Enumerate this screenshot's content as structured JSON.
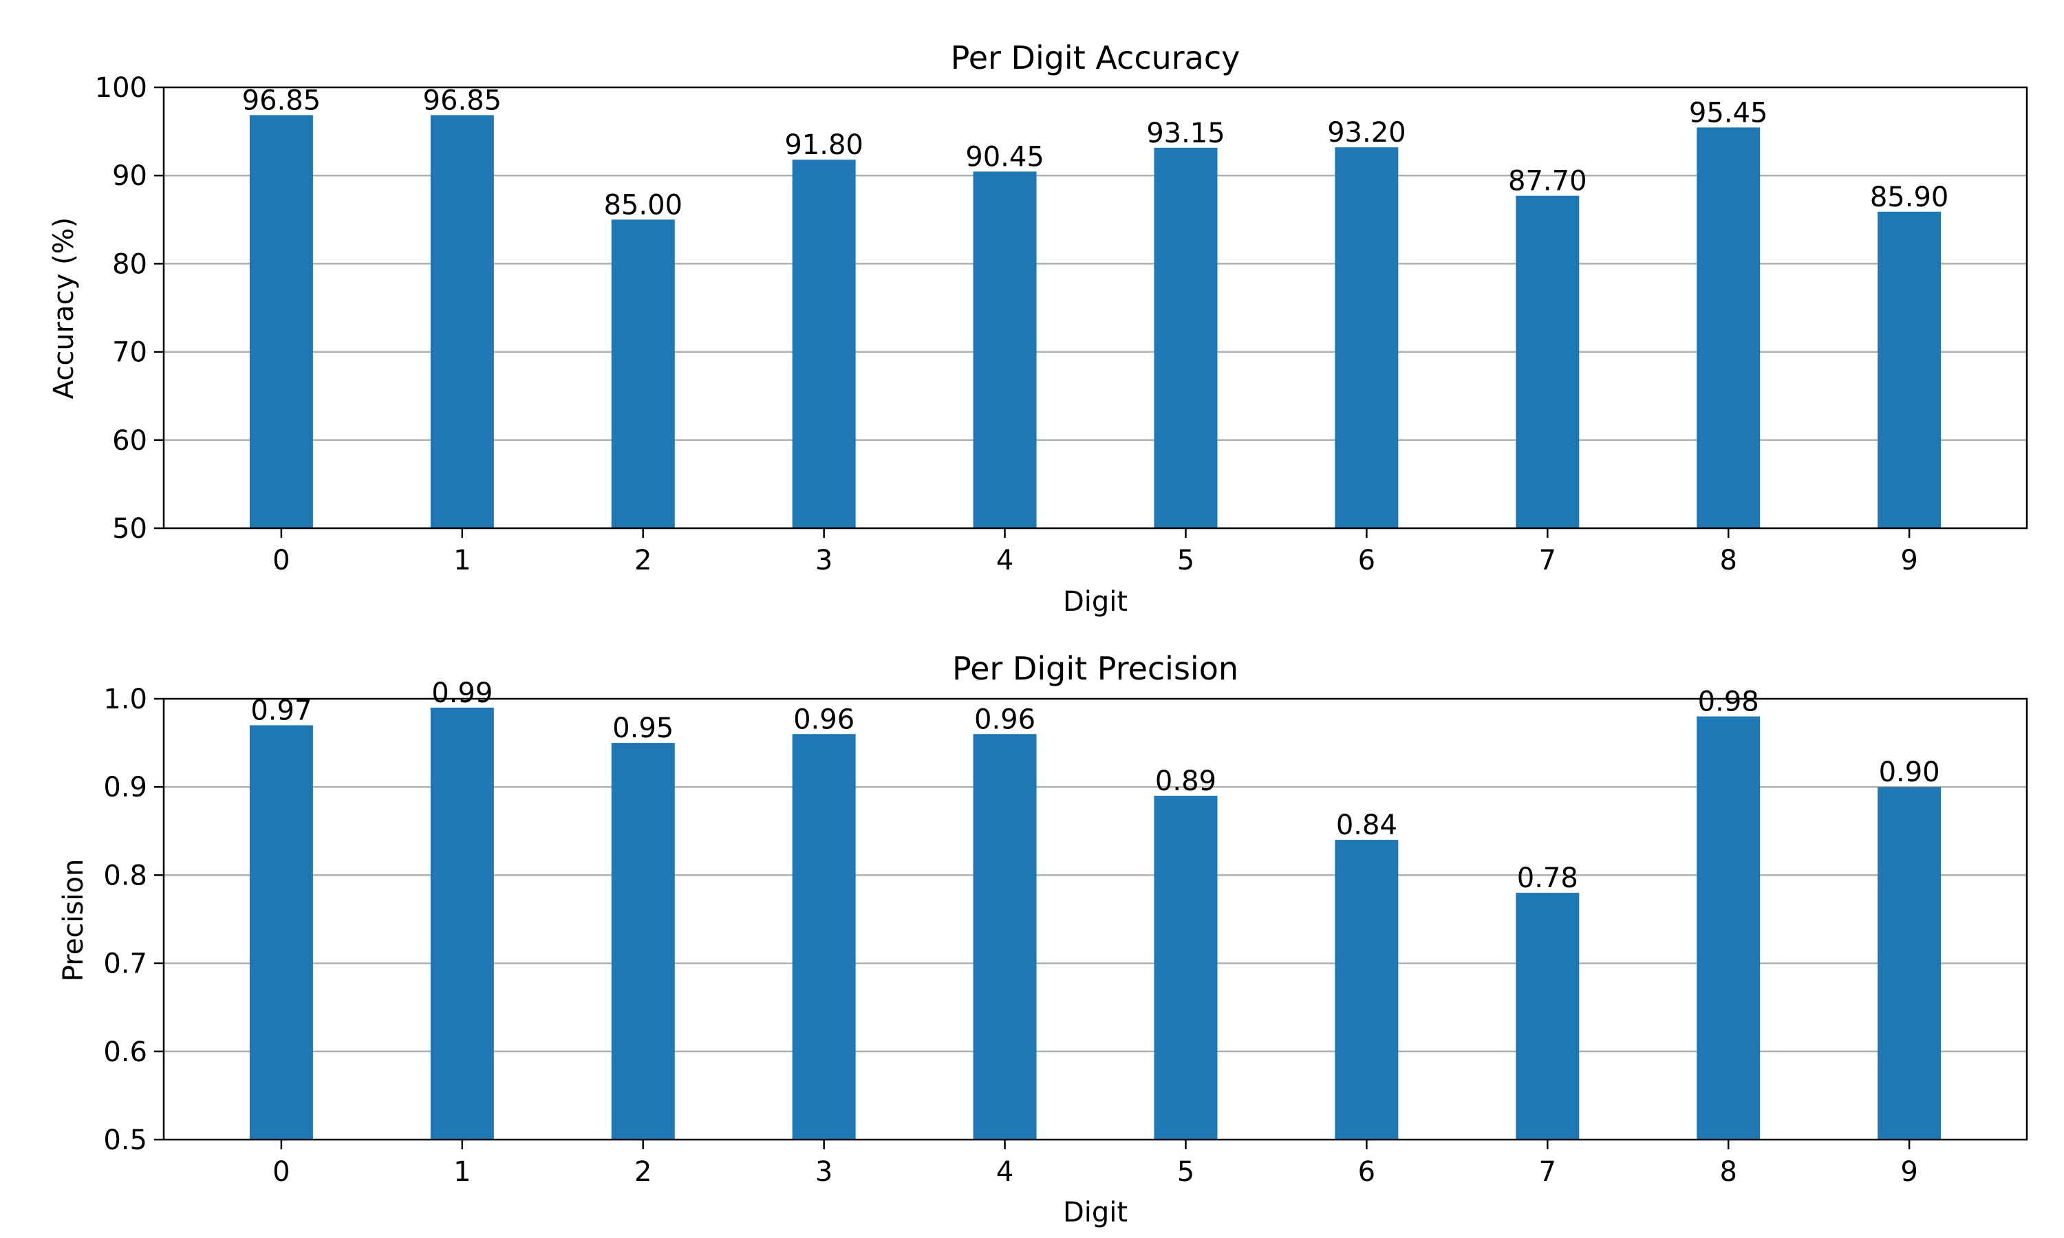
{
  "colors": {
    "bar": "#1f77b4",
    "grid": "#b0b0b0",
    "axis": "#000000"
  },
  "chart_data": [
    {
      "type": "bar",
      "title": "Per Digit Accuracy",
      "xlabel": "Digit",
      "ylabel": "Accuracy (%)",
      "categories": [
        "0",
        "1",
        "2",
        "3",
        "4",
        "5",
        "6",
        "7",
        "8",
        "9"
      ],
      "values": [
        96.85,
        96.85,
        85.0,
        91.8,
        90.45,
        93.15,
        93.2,
        87.7,
        95.45,
        85.9
      ],
      "value_labels": [
        "96.85",
        "96.85",
        "85.00",
        "91.80",
        "90.45",
        "93.15",
        "93.20",
        "87.70",
        "95.45",
        "85.90"
      ],
      "ylim": [
        50,
        100
      ],
      "yticks": [
        50,
        60,
        70,
        80,
        90,
        100
      ],
      "ytick_labels": [
        "50",
        "60",
        "70",
        "80",
        "90",
        "100"
      ],
      "grid": "y"
    },
    {
      "type": "bar",
      "title": "Per Digit Precision",
      "xlabel": "Digit",
      "ylabel": "Precision",
      "categories": [
        "0",
        "1",
        "2",
        "3",
        "4",
        "5",
        "6",
        "7",
        "8",
        "9"
      ],
      "values": [
        0.97,
        0.99,
        0.95,
        0.96,
        0.96,
        0.89,
        0.84,
        0.78,
        0.98,
        0.9
      ],
      "value_labels": [
        "0.97",
        "0.99",
        "0.95",
        "0.96",
        "0.96",
        "0.89",
        "0.84",
        "0.78",
        "0.98",
        "0.90"
      ],
      "ylim": [
        0.5,
        1.0
      ],
      "yticks": [
        0.5,
        0.6,
        0.7,
        0.8,
        0.9,
        1.0
      ],
      "ytick_labels": [
        "0.5",
        "0.6",
        "0.7",
        "0.8",
        "0.9",
        "1.0"
      ],
      "grid": "y"
    }
  ]
}
